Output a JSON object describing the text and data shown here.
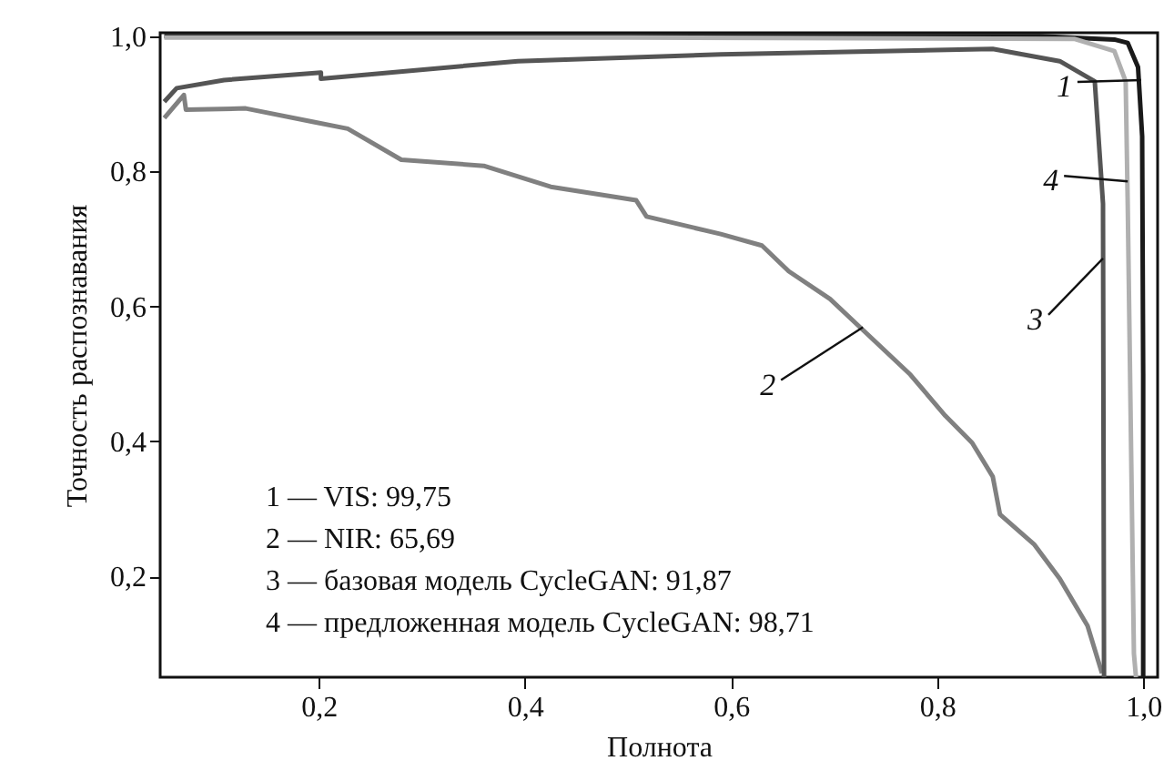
{
  "chart_data": {
    "type": "line",
    "xlabel": "Полнота",
    "ylabel": "Точность распознавания",
    "xlim": [
      0.046,
      1.014
    ],
    "ylim": [
      0.051,
      1.005
    ],
    "xticks": [
      {
        "value": 0.2,
        "label": "0,2"
      },
      {
        "value": 0.4,
        "label": "0,4"
      },
      {
        "value": 0.6,
        "label": "0,6"
      },
      {
        "value": 0.8,
        "label": "0,8"
      },
      {
        "value": 1.0,
        "label": "1,0"
      }
    ],
    "yticks": [
      {
        "value": 0.2,
        "label": "0,2"
      },
      {
        "value": 0.4,
        "label": "0,4"
      },
      {
        "value": 0.6,
        "label": "0,6"
      },
      {
        "value": 0.8,
        "label": "0,8"
      },
      {
        "value": 1.0,
        "label": "1,0"
      }
    ],
    "grid": false,
    "marker": "none",
    "line_style": "solid",
    "series": [
      {
        "color": "#1a1a1a",
        "x": [
          0.05,
          0.5,
          0.9,
          0.972,
          0.985,
          0.995,
          0.999,
          1.0,
          1.0
        ],
        "values": [
          1.0,
          1.0,
          1.0,
          0.995,
          0.99,
          0.954,
          0.852,
          0.5,
          0.051
        ]
      },
      {
        "color": "#808080",
        "x": [
          0.05,
          0.069,
          0.071,
          0.129,
          0.195,
          0.228,
          0.28,
          0.36,
          0.425,
          0.508,
          0.518,
          0.59,
          0.63,
          0.656,
          0.696,
          0.728,
          0.774,
          0.808,
          0.834,
          0.854,
          0.861,
          0.894,
          0.919,
          0.946,
          0.96
        ],
        "values": [
          0.879,
          0.913,
          0.891,
          0.893,
          0.873,
          0.863,
          0.817,
          0.808,
          0.777,
          0.757,
          0.733,
          0.707,
          0.69,
          0.652,
          0.611,
          0.565,
          0.499,
          0.438,
          0.398,
          0.348,
          0.292,
          0.248,
          0.197,
          0.127,
          0.057
        ]
      },
      {
        "color": "#555555",
        "x": [
          0.05,
          0.062,
          0.108,
          0.202,
          0.202,
          0.393,
          0.59,
          0.854,
          0.919,
          0.953,
          0.961,
          0.962
        ],
        "values": [
          0.903,
          0.923,
          0.935,
          0.946,
          0.937,
          0.963,
          0.973,
          0.981,
          0.963,
          0.933,
          0.752,
          0.051
        ]
      },
      {
        "color": "#b0b0b0",
        "x": [
          0.05,
          0.5,
          0.933,
          0.972,
          0.983,
          0.985,
          0.991,
          0.993
        ],
        "values": [
          0.998,
          0.998,
          0.996,
          0.978,
          0.933,
          0.75,
          0.086,
          0.051
        ]
      }
    ],
    "annotations": [
      {
        "text": "1",
        "x": 0.998,
        "y": 0.935
      },
      {
        "text": "2",
        "x": 0.728,
        "y": 0.569
      },
      {
        "text": "3",
        "x": 0.961,
        "y": 0.671
      },
      {
        "text": "4",
        "x": 0.985,
        "y": 0.785
      },
      "1 — VIS: 99,75",
      "2 — NIR: 65,69",
      "3 — базовая модель CycleGAN: 91,87",
      "4 — предложенная модель CycleGAN: 98,71"
    ]
  }
}
